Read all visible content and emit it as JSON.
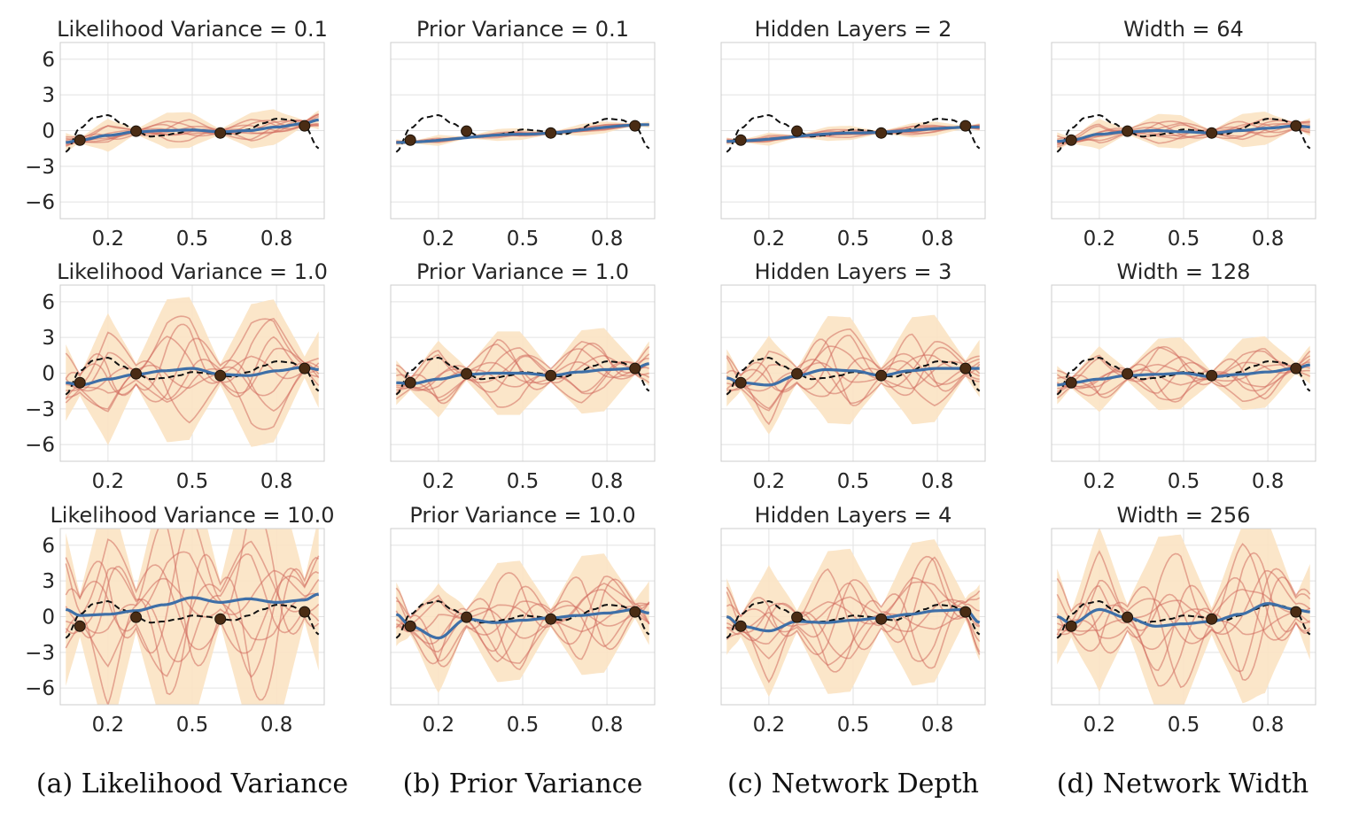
{
  "chart_data": {
    "type": "line",
    "x_ticks": [
      0.2,
      0.5,
      0.8
    ],
    "y_ticks": [
      6,
      3,
      0,
      -3,
      -6
    ],
    "y_tick_labels": [
      "6",
      "3",
      "0",
      "−3",
      "−6"
    ],
    "xlim": [
      0.03,
      0.97
    ],
    "ylim": [
      -7.4,
      7.4
    ],
    "grid": true,
    "observations": {
      "x": [
        0.1,
        0.3,
        0.6,
        0.9
      ],
      "y": [
        -0.8,
        -0.05,
        -0.2,
        0.4
      ]
    },
    "true_function": {
      "x": [
        0.05,
        0.1,
        0.15,
        0.2,
        0.25,
        0.3,
        0.35,
        0.4,
        0.45,
        0.5,
        0.55,
        0.6,
        0.65,
        0.7,
        0.75,
        0.8,
        0.85,
        0.9,
        0.95
      ],
      "y": [
        -1.8,
        0.2,
        1.1,
        1.3,
        0.6,
        -0.05,
        -0.5,
        -0.4,
        -0.2,
        0.1,
        0.0,
        -0.2,
        -0.3,
        0.1,
        0.6,
        1.0,
        0.9,
        0.4,
        -1.5
      ]
    },
    "colors": {
      "mean": "#3e6fa7",
      "samples": "#d26b5f",
      "band": "#fbe3c3",
      "truth": "#111111",
      "points": "#4a2c14"
    },
    "panels": [
      {
        "title": "Likelihood Variance = 0.1",
        "column": "(a) Likelihood Variance",
        "band_scale": 1.5,
        "sample_amp": 0.8,
        "mean_shape": "fit",
        "mean": {
          "x": [
            0.05,
            0.1,
            0.2,
            0.3,
            0.4,
            0.5,
            0.6,
            0.7,
            0.8,
            0.9,
            0.95
          ],
          "y": [
            -1.0,
            -0.8,
            -0.4,
            -0.1,
            0.0,
            0.05,
            -0.1,
            0.0,
            0.3,
            0.6,
            0.9
          ]
        }
      },
      {
        "title": "Prior Variance = 0.1",
        "column": "(b) Prior Variance",
        "band_scale": 0.5,
        "sample_amp": 0.2,
        "mean_shape": "linear",
        "mean": {
          "x": [
            0.05,
            0.5,
            0.95
          ],
          "y": [
            -1.0,
            -0.3,
            0.5
          ]
        }
      },
      {
        "title": "Hidden Layers = 2",
        "column": "(c) Network Depth",
        "band_scale": 0.6,
        "sample_amp": 0.3,
        "mean_shape": "linear",
        "mean": {
          "x": [
            0.05,
            0.5,
            0.95
          ],
          "y": [
            -0.9,
            -0.2,
            0.3
          ]
        }
      },
      {
        "title": "Width = 64",
        "column": "(d) Network Width",
        "band_scale": 1.4,
        "sample_amp": 0.9,
        "mean_shape": "fit",
        "mean": {
          "x": [
            0.05,
            0.1,
            0.2,
            0.3,
            0.4,
            0.5,
            0.6,
            0.7,
            0.8,
            0.9,
            0.95
          ],
          "y": [
            -0.9,
            -0.8,
            -0.3,
            -0.1,
            0.0,
            -0.1,
            -0.2,
            0.0,
            0.2,
            0.4,
            0.3
          ]
        }
      },
      {
        "title": "Likelihood Variance = 1.0",
        "band_scale": 6.0,
        "sample_amp": 4.0,
        "mean_shape": "fit",
        "mean": {
          "x": [
            0.05,
            0.1,
            0.2,
            0.3,
            0.4,
            0.5,
            0.6,
            0.7,
            0.8,
            0.9,
            0.95
          ],
          "y": [
            -0.8,
            -1.0,
            -0.5,
            -0.1,
            0.2,
            0.4,
            -0.1,
            -0.2,
            0.2,
            0.5,
            0.3
          ]
        }
      },
      {
        "title": "Prior Variance = 1.0",
        "band_scale": 3.5,
        "sample_amp": 2.5,
        "mean_shape": "fit",
        "mean": {
          "x": [
            0.05,
            0.1,
            0.2,
            0.3,
            0.4,
            0.5,
            0.6,
            0.7,
            0.8,
            0.9,
            0.95
          ],
          "y": [
            -0.8,
            -0.9,
            -0.5,
            -0.1,
            0.0,
            0.0,
            -0.2,
            0.1,
            0.3,
            0.4,
            0.8
          ]
        }
      },
      {
        "title": "Hidden Layers = 3",
        "band_scale": 4.5,
        "sample_amp": 3.0,
        "mean_shape": "fit",
        "mean": {
          "x": [
            0.05,
            0.1,
            0.2,
            0.3,
            0.4,
            0.5,
            0.6,
            0.7,
            0.8,
            0.9,
            0.95
          ],
          "y": [
            -0.4,
            -0.8,
            -1.0,
            -0.2,
            0.3,
            0.2,
            -0.2,
            0.2,
            0.4,
            0.4,
            0.4
          ]
        }
      },
      {
        "title": "Width = 128",
        "band_scale": 3.0,
        "sample_amp": 2.0,
        "mean_shape": "fit",
        "mean": {
          "x": [
            0.05,
            0.1,
            0.2,
            0.3,
            0.4,
            0.5,
            0.6,
            0.7,
            0.8,
            0.9,
            0.95
          ],
          "y": [
            -1.0,
            -0.8,
            -0.5,
            -0.2,
            -0.1,
            0.0,
            -0.3,
            -0.1,
            0.1,
            0.4,
            0.7
          ]
        }
      },
      {
        "title": "Likelihood Variance = 10.0",
        "band_scale": 12.0,
        "sample_amp": 7.0,
        "mean_shape": "fit",
        "mean": {
          "x": [
            0.05,
            0.1,
            0.2,
            0.3,
            0.4,
            0.5,
            0.6,
            0.7,
            0.8,
            0.9,
            0.95
          ],
          "y": [
            0.6,
            0.1,
            0.2,
            0.5,
            1.0,
            1.6,
            1.2,
            1.5,
            1.2,
            1.4,
            1.9
          ]
        }
      },
      {
        "title": "Prior Variance = 10.0",
        "band_scale": 5.0,
        "sample_amp": 3.5,
        "mean_shape": "fit",
        "mean": {
          "x": [
            0.05,
            0.1,
            0.2,
            0.3,
            0.4,
            0.5,
            0.6,
            0.7,
            0.8,
            0.9,
            0.95
          ],
          "y": [
            0.2,
            -0.8,
            -1.8,
            -0.2,
            -0.5,
            -0.3,
            -0.1,
            0.1,
            0.3,
            0.6,
            0.3
          ]
        }
      },
      {
        "title": "Hidden Layers = 4",
        "band_scale": 6.0,
        "sample_amp": 4.0,
        "mean_shape": "fit",
        "mean": {
          "x": [
            0.05,
            0.1,
            0.2,
            0.3,
            0.4,
            0.5,
            0.6,
            0.7,
            0.8,
            0.9,
            0.95
          ],
          "y": [
            0.0,
            -0.8,
            -1.2,
            -0.4,
            -0.5,
            -0.3,
            -0.1,
            0.2,
            0.5,
            0.6,
            -0.5
          ]
        }
      },
      {
        "title": "Width = 256",
        "band_scale": 7.5,
        "sample_amp": 5.0,
        "mean_shape": "fit",
        "mean": {
          "x": [
            0.05,
            0.1,
            0.2,
            0.3,
            0.4,
            0.5,
            0.6,
            0.7,
            0.8,
            0.9,
            0.95
          ],
          "y": [
            0.0,
            -0.6,
            0.6,
            -0.1,
            -0.8,
            -0.6,
            -0.4,
            0.2,
            1.1,
            0.6,
            0.4
          ]
        }
      }
    ]
  },
  "captions": [
    "(a) Likelihood Variance",
    "(b) Prior Variance",
    "(c) Network Depth",
    "(d) Network Width"
  ]
}
